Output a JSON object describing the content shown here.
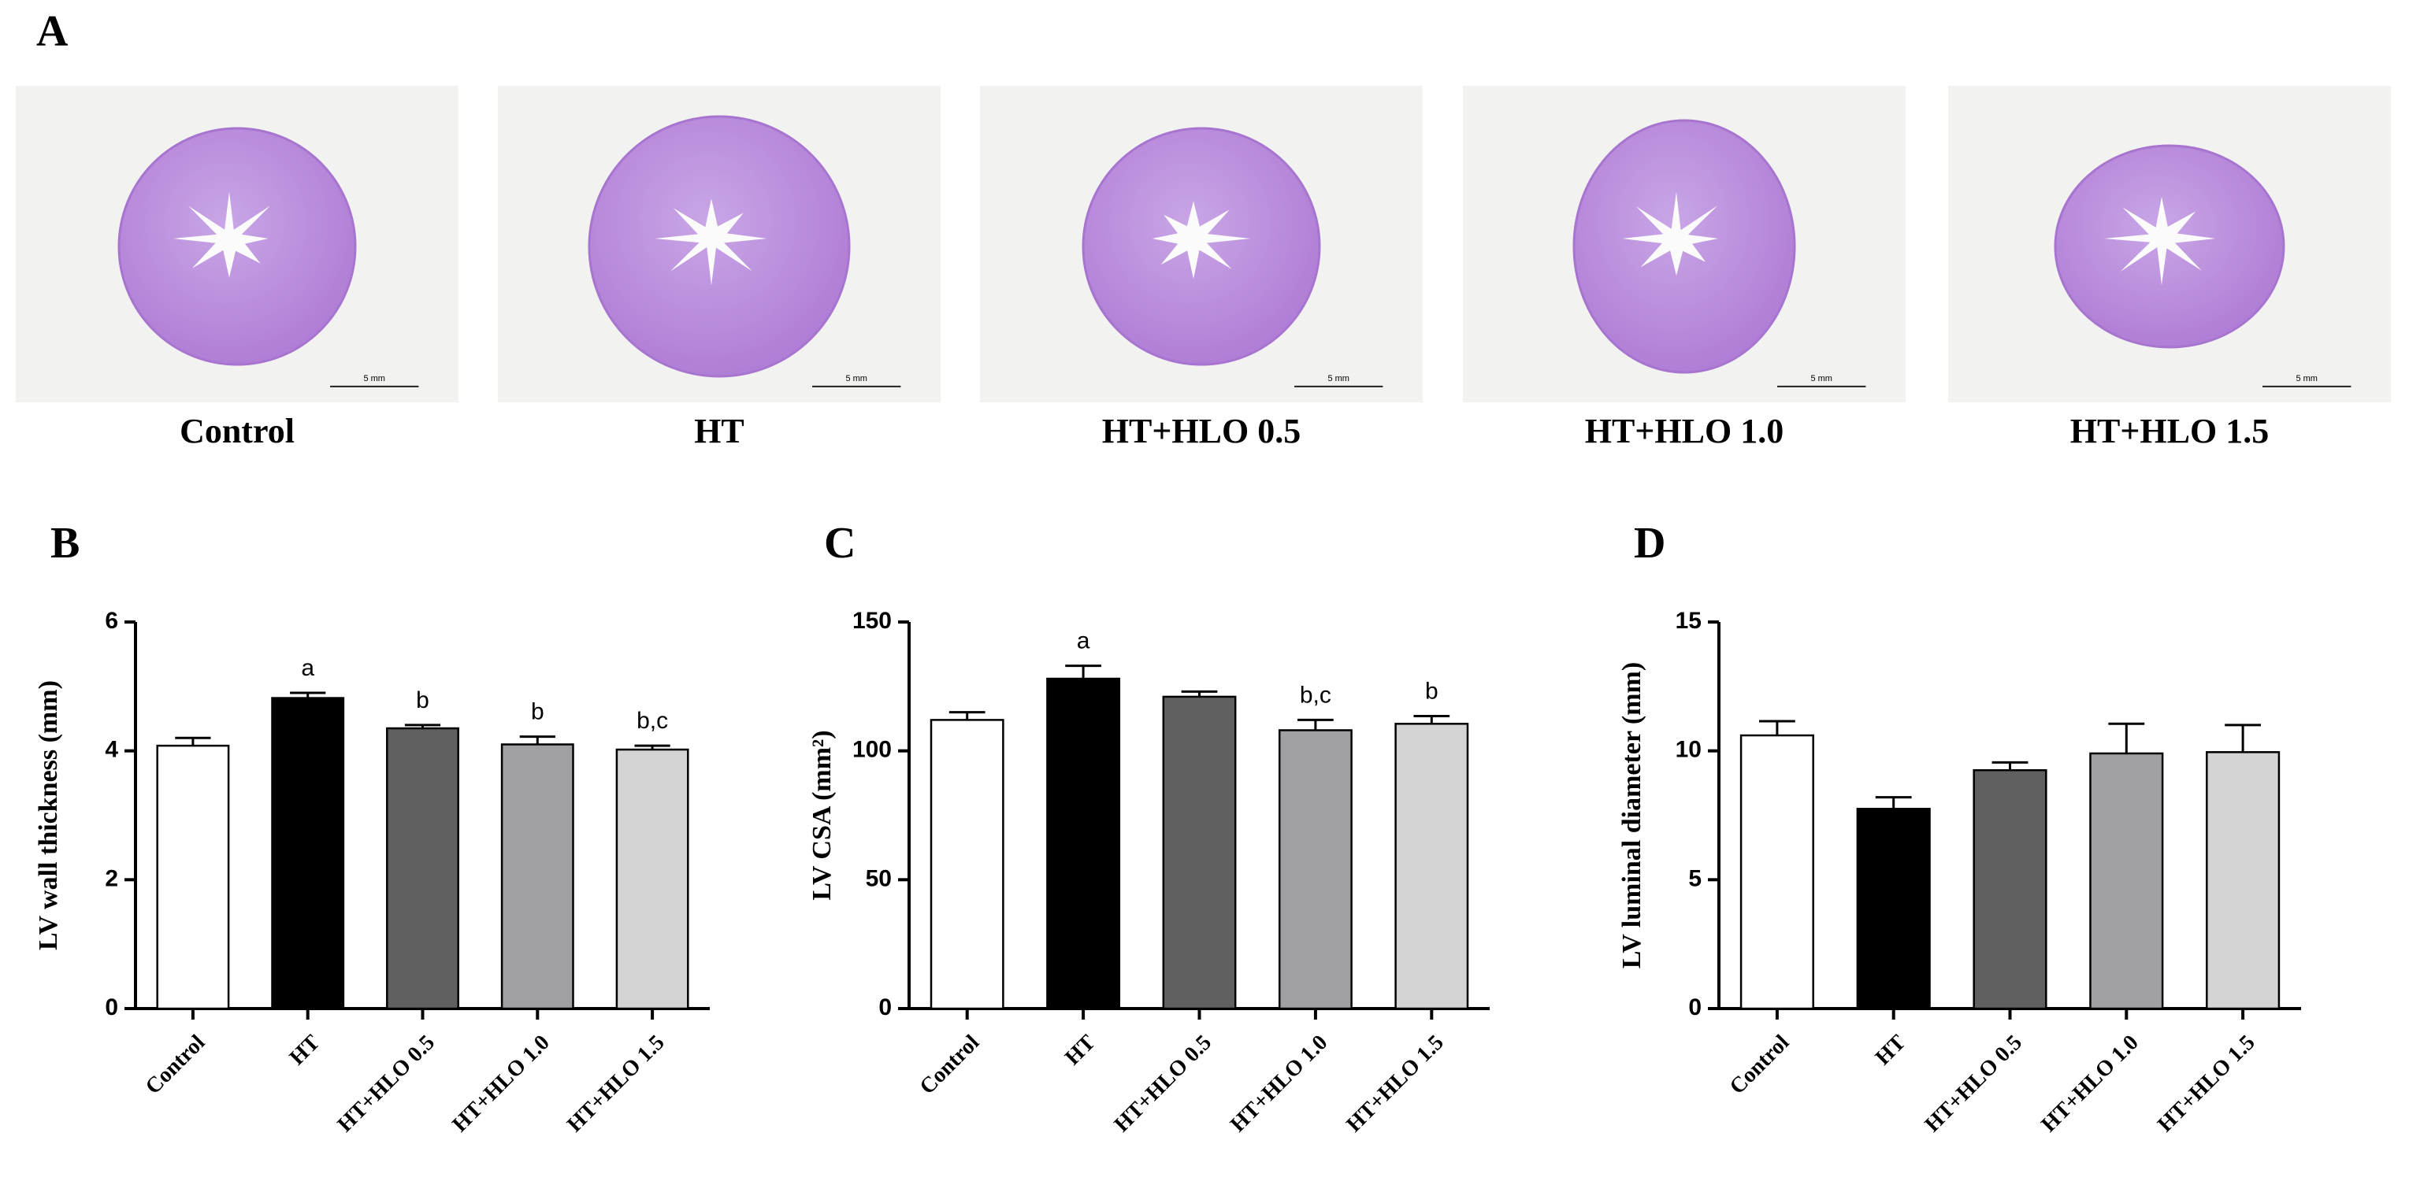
{
  "panel_a": {
    "label": "A",
    "captions": [
      "Control",
      "HT",
      "HT+HLO 0.5",
      "HT+HLO 1.0",
      "HT+HLO 1.5"
    ],
    "scale_bar": "5 mm"
  },
  "chart_data": [
    {
      "type": "bar",
      "panel_label": "B",
      "y_label": "LV wall thickness (mm)",
      "categories": [
        "Control",
        "HT",
        "HT+HLO 0.5",
        "HT+HLO 1.0",
        "HT+HLO 1.5"
      ],
      "values": [
        4.08,
        4.82,
        4.35,
        4.1,
        4.02
      ],
      "errors": [
        0.12,
        0.08,
        0.05,
        0.12,
        0.06
      ],
      "annotations": [
        null,
        "a",
        "b",
        "b",
        "b,c"
      ],
      "colors": [
        "#ffffff",
        "#000000",
        "#606060",
        "#a0a0a4",
        "#d4d4d4"
      ],
      "ylim": [
        0,
        6
      ],
      "yticks": [
        0,
        2,
        4,
        6
      ]
    },
    {
      "type": "bar",
      "panel_label": "C",
      "y_label": "LV CSA (mm²)",
      "categories": [
        "Control",
        "HT",
        "HT+HLO 0.5",
        "HT+HLO 1.0",
        "HT+HLO 1.5"
      ],
      "values": [
        112,
        128,
        121,
        108,
        110.5
      ],
      "errors": [
        3,
        5,
        2,
        4,
        3
      ],
      "annotations": [
        null,
        "a",
        null,
        "b,c",
        "b"
      ],
      "colors": [
        "#ffffff",
        "#000000",
        "#606060",
        "#a0a0a4",
        "#d4d4d4"
      ],
      "ylim": [
        0,
        150
      ],
      "yticks": [
        0,
        50,
        100,
        150
      ]
    },
    {
      "type": "bar",
      "panel_label": "D",
      "y_label": "LV luminal diameter (mm)",
      "categories": [
        "Control",
        "HT",
        "HT+HLO 0.5",
        "HT+HLO 1.0",
        "HT+HLO 1.5"
      ],
      "values": [
        10.6,
        7.75,
        9.25,
        9.9,
        9.95
      ],
      "errors": [
        0.55,
        0.45,
        0.3,
        1.15,
        1.05
      ],
      "colors": [
        "#ffffff",
        "#000000",
        "#606060",
        "#a0a0a4",
        "#d4d4d4"
      ],
      "ylim": [
        0,
        15
      ],
      "yticks": [
        0,
        5,
        10,
        15
      ]
    }
  ]
}
